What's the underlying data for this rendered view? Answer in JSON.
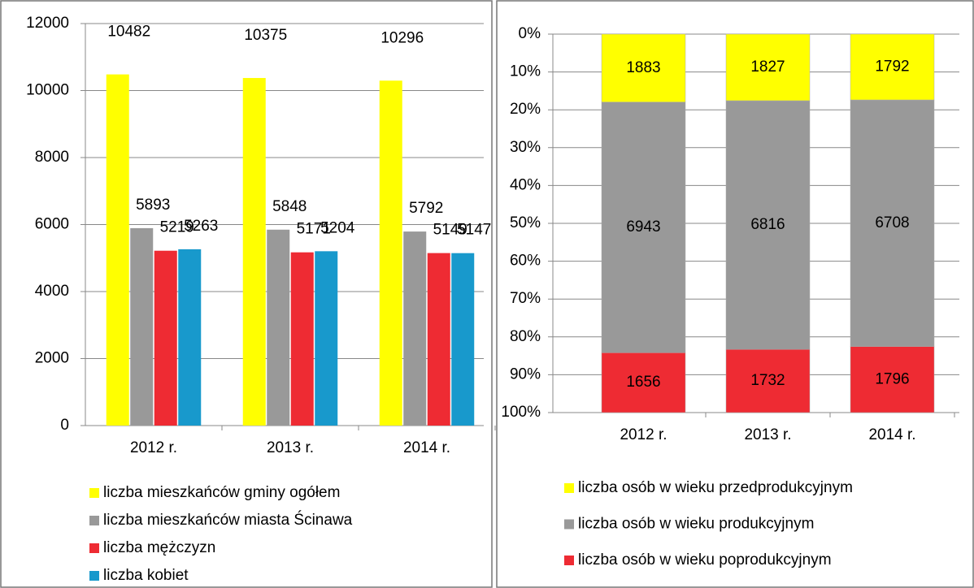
{
  "chart_data": [
    {
      "type": "bar",
      "categories": [
        "2012 r.",
        "2013 r.",
        "2014 r."
      ],
      "series": [
        {
          "name": "liczba mieszkańców gminy ogółem",
          "color": "#ffff00",
          "values": [
            10482,
            10375,
            10296
          ]
        },
        {
          "name": "liczba mieszkańców miasta Ścinawa",
          "color": "#999999",
          "values": [
            5893,
            5848,
            5792
          ]
        },
        {
          "name": "liczba mężczyzn",
          "color": "#ee2b33",
          "values": [
            5219,
            5171,
            5149
          ]
        },
        {
          "name": "liczba kobiet",
          "color": "#1899cc",
          "values": [
            5263,
            5204,
            5147
          ]
        }
      ],
      "ylim": [
        0,
        12000
      ],
      "yticks": [
        0,
        2000,
        4000,
        6000,
        8000,
        10000,
        12000
      ],
      "grid": true
    },
    {
      "type": "stacked_percent",
      "categories": [
        "2012 r.",
        "2013 r.",
        "2014 r."
      ],
      "series": [
        {
          "name": "liczba osób w wieku przedprodukcyjnym",
          "color": "#ffff00",
          "values": [
            1883,
            1827,
            1792
          ]
        },
        {
          "name": "liczba osób w wieku produkcyjnym",
          "color": "#999999",
          "values": [
            6943,
            6816,
            6708
          ]
        },
        {
          "name": "liczba osób w wieku poprodukcyjnym",
          "color": "#ee2b33",
          "values": [
            1656,
            1732,
            1796
          ]
        }
      ],
      "ylim": [
        0,
        100
      ],
      "inverted": true,
      "yticks": [
        {
          "value": 0,
          "label": "0%"
        },
        {
          "value": 10,
          "label": "10%"
        },
        {
          "value": 20,
          "label": "20%"
        },
        {
          "value": 30,
          "label": "30%"
        },
        {
          "value": 40,
          "label": "40%"
        },
        {
          "value": 50,
          "label": "50%"
        },
        {
          "value": 60,
          "label": "60%"
        },
        {
          "value": 70,
          "label": "70%"
        },
        {
          "value": 80,
          "label": "80%"
        },
        {
          "value": 90,
          "label": "90%"
        },
        {
          "value": 100,
          "label": "100%"
        }
      ],
      "grid": true
    }
  ]
}
